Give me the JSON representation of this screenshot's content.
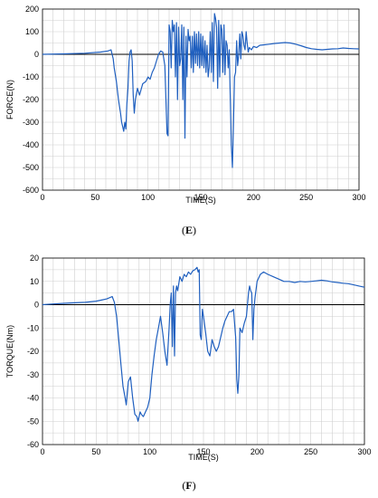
{
  "chart_data": [
    {
      "type": "line",
      "caption_open": "(",
      "caption_letter": "E",
      "caption_close": ")",
      "xlabel": "TIME(S)",
      "ylabel": "FORCE(N)",
      "xlim": [
        0,
        300
      ],
      "ylim": [
        -600,
        200
      ],
      "xticks": [
        "0",
        "50",
        "100",
        "150",
        "200",
        "250",
        "300"
      ],
      "yticks": [
        "200",
        "100",
        "0",
        "-100",
        "-200",
        "-300",
        "-400",
        "-500",
        "-600"
      ],
      "grid": true,
      "line_color": "#1f5fbf",
      "series": [
        {
          "x": [
            0,
            20,
            40,
            55,
            62,
            65,
            67,
            68,
            70,
            72,
            74,
            75,
            76,
            77,
            78,
            79,
            80,
            81,
            82,
            83,
            84,
            85,
            86,
            87,
            88,
            90,
            92,
            95,
            98,
            100,
            102,
            104,
            106,
            108,
            110,
            112,
            114,
            116,
            117,
            118,
            119,
            120,
            121,
            122,
            123,
            124,
            125,
            126,
            127,
            128,
            129,
            130,
            131,
            132,
            133,
            134,
            135,
            136,
            137,
            138,
            139,
            140,
            141,
            142,
            143,
            144,
            145,
            146,
            147,
            148,
            149,
            150,
            151,
            152,
            153,
            154,
            155,
            156,
            157,
            158,
            159,
            160,
            161,
            162,
            163,
            164,
            165,
            166,
            167,
            168,
            169,
            170,
            171,
            172,
            173,
            174,
            175,
            176,
            177,
            178,
            179,
            180,
            181,
            182,
            183,
            184,
            185,
            186,
            187,
            188,
            189,
            190,
            191,
            192,
            193,
            194,
            195,
            196,
            198,
            200,
            203,
            206,
            210,
            215,
            220,
            225,
            230,
            235,
            240,
            245,
            250,
            255,
            260,
            265,
            270,
            275,
            280,
            285,
            290,
            295,
            300
          ],
          "y": [
            0,
            2,
            5,
            10,
            15,
            20,
            -20,
            -60,
            -120,
            -200,
            -260,
            -300,
            -320,
            -340,
            -300,
            -330,
            -220,
            -150,
            -30,
            10,
            20,
            -30,
            -180,
            -260,
            -200,
            -150,
            -180,
            -130,
            -120,
            -100,
            -110,
            -80,
            -60,
            -30,
            0,
            15,
            10,
            -50,
            -200,
            -350,
            -360,
            130,
            100,
            -60,
            150,
            100,
            130,
            -100,
            140,
            -200,
            120,
            -50,
            -20,
            130,
            -200,
            120,
            -370,
            80,
            -100,
            110,
            60,
            80,
            -60,
            80,
            -80,
            100,
            -40,
            90,
            -50,
            100,
            -60,
            90,
            -50,
            80,
            -60,
            60,
            -80,
            40,
            -100,
            -60,
            100,
            -80,
            140,
            -120,
            180,
            160,
            120,
            -150,
            150,
            -100,
            130,
            110,
            -80,
            130,
            -90,
            60,
            40,
            -60,
            20,
            -200,
            -400,
            -500,
            -300,
            -100,
            -80,
            60,
            -50,
            0,
            90,
            -20,
            100,
            80,
            40,
            20,
            100,
            50,
            10,
            30,
            20,
            35,
            30,
            40,
            42,
            45,
            48,
            50,
            52,
            50,
            45,
            38,
            30,
            25,
            22,
            20,
            22,
            24,
            25,
            28,
            26,
            25,
            24
          ]
        }
      ]
    },
    {
      "type": "line",
      "caption_open": "(",
      "caption_letter": "F",
      "caption_close": ")",
      "xlabel": "TIME(S)",
      "ylabel": "TORQUE(Nm)",
      "xlim": [
        0,
        300
      ],
      "ylim": [
        -60,
        20
      ],
      "xticks": [
        "0",
        "50",
        "100",
        "150",
        "200",
        "250",
        "300"
      ],
      "yticks": [
        "20",
        "10",
        "0",
        "-10",
        "-20",
        "-30",
        "-40",
        "-50",
        "-60"
      ],
      "grid": true,
      "line_color": "#1f5fbf",
      "series": [
        {
          "x": [
            0,
            10,
            20,
            30,
            40,
            50,
            55,
            60,
            65,
            67,
            69,
            71,
            73,
            75,
            77,
            78,
            79,
            80,
            82,
            84,
            86,
            88,
            89,
            90,
            91,
            92,
            94,
            96,
            98,
            100,
            102,
            104,
            106,
            108,
            110,
            112,
            114,
            116,
            118,
            119,
            120,
            121,
            122,
            123,
            124,
            125,
            126,
            128,
            130,
            132,
            134,
            136,
            138,
            140,
            142,
            144,
            145,
            146,
            147,
            148,
            149,
            150,
            152,
            154,
            156,
            158,
            160,
            162,
            164,
            166,
            168,
            170,
            172,
            174,
            176,
            178,
            180,
            181,
            182,
            183,
            184,
            186,
            188,
            190,
            192,
            193,
            194,
            195,
            196,
            197,
            198,
            200,
            203,
            206,
            210,
            215,
            220,
            225,
            230,
            235,
            240,
            245,
            250,
            255,
            260,
            265,
            270,
            275,
            280,
            285,
            290,
            295,
            300
          ],
          "y": [
            0,
            0.3,
            0.6,
            0.8,
            1,
            1.5,
            2,
            2.5,
            3.5,
            1,
            -5,
            -15,
            -25,
            -35,
            -40,
            -43,
            -38,
            -33,
            -31,
            -40,
            -47,
            -48,
            -50,
            -48,
            -46,
            -47,
            -48,
            -46,
            -44,
            -40,
            -30,
            -22,
            -15,
            -10,
            -5,
            -12,
            -20,
            -26,
            -10,
            0,
            5,
            -18,
            8,
            -22,
            5,
            8,
            6,
            12,
            10,
            13,
            12,
            14,
            13,
            14.5,
            15,
            16,
            14,
            15,
            -13,
            -15,
            -2,
            -5,
            -12,
            -20,
            -22,
            -15,
            -18,
            -20,
            -18,
            -14,
            -10,
            -7,
            -5,
            -3,
            -3,
            -2,
            -14,
            -32,
            -38,
            -30,
            -10,
            -12,
            -8,
            -5,
            5,
            8,
            6,
            5,
            -15,
            -2,
            3,
            10,
            13,
            14,
            13,
            12,
            11,
            10,
            10,
            9.5,
            10,
            9.8,
            10,
            10.2,
            10.5,
            10.2,
            9.8,
            9.5,
            9.2,
            9,
            8.5,
            8,
            7.5
          ]
        }
      ]
    }
  ]
}
